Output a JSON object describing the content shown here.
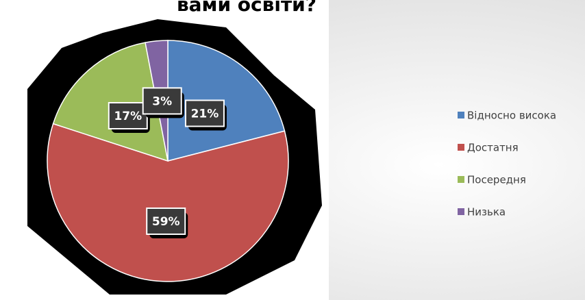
{
  "chart_data": {
    "type": "pie",
    "title": "вами освіти?",
    "categories": [
      "Відносно висока",
      "Достатня",
      "Посередня",
      "Низька"
    ],
    "values": [
      21,
      59,
      17,
      3
    ],
    "value_labels": [
      "21%",
      "59%",
      "17%",
      "3%"
    ],
    "colors": [
      "#4f81bd",
      "#c0504d",
      "#9bbb59",
      "#8064a2"
    ],
    "legend": "right"
  }
}
